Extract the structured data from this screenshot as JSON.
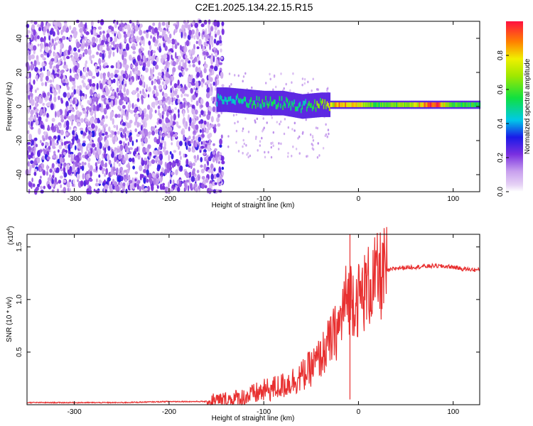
{
  "title": "C2E1.2025.134.22.15.R15",
  "chart_data": [
    {
      "type": "heatmap",
      "xlabel": "Height of straight line (km)",
      "ylabel": "Frequency (Hz)",
      "xlim": [
        -350,
        128
      ],
      "ylim": [
        -50,
        50
      ],
      "xticks": [
        -300,
        -200,
        -100,
        0,
        100
      ],
      "yticks": [
        -40,
        -20,
        0,
        20,
        40
      ],
      "colorbar": {
        "label": "Normalized spectral amplitude",
        "range": [
          0.0,
          1.0
        ],
        "ticks": [
          0.0,
          0.2,
          0.4,
          0.6,
          0.8
        ],
        "colormap": "rainbow: lavender-violet-blue-cyan-green-yellow-orange-red"
      },
      "ridge": [
        {
          "x": -140,
          "y": 4,
          "amp": 0.45
        },
        {
          "x": -120,
          "y": 3,
          "amp": 0.5
        },
        {
          "x": -100,
          "y": 2,
          "amp": 0.55
        },
        {
          "x": -80,
          "y": 2,
          "amp": 0.55
        },
        {
          "x": -60,
          "y": 0,
          "amp": 0.5
        },
        {
          "x": -40,
          "y": 1,
          "amp": 0.65
        },
        {
          "x": -20,
          "y": 1,
          "amp": 0.85
        },
        {
          "x": 0,
          "y": 1,
          "amp": 0.8
        },
        {
          "x": 20,
          "y": 1,
          "amp": 0.6
        },
        {
          "x": 50,
          "y": 1,
          "amp": 0.7
        },
        {
          "x": 80,
          "y": 1,
          "amp": 0.95
        },
        {
          "x": 100,
          "y": 1,
          "amp": 0.6
        },
        {
          "x": 128,
          "y": 1,
          "amp": 0.55
        }
      ]
    },
    {
      "type": "line",
      "xlabel": "Height of straight line (km)",
      "ylabel": "SNR (10 * v/v)",
      "yscale_label": "(x10",
      "yscale_exp": "4",
      "xlim": [
        -350,
        128
      ],
      "ylim": [
        0,
        1.62
      ],
      "xticks": [
        -300,
        -200,
        -100,
        0,
        100
      ],
      "yticks": [
        0.5,
        1.0,
        1.5
      ],
      "ytick_labels": [
        "0.5",
        "1.0",
        "1.5"
      ],
      "color": "#e83030",
      "series": [
        {
          "x": [
            -350,
            -300,
            -250,
            -200,
            -160,
            -140,
            -120,
            -100,
            -80,
            -60,
            -50,
            -40,
            -30,
            -20,
            -15,
            -10,
            0,
            10,
            20,
            30,
            40,
            60,
            80,
            100,
            110,
            128
          ],
          "y": [
            0.02,
            0.02,
            0.02,
            0.03,
            0.03,
            0.04,
            0.07,
            0.13,
            0.18,
            0.27,
            0.35,
            0.45,
            0.6,
            0.75,
            0.95,
            1.05,
            1.0,
            1.12,
            1.2,
            1.27,
            1.3,
            1.31,
            1.32,
            1.31,
            1.29,
            1.28
          ]
        }
      ]
    }
  ]
}
